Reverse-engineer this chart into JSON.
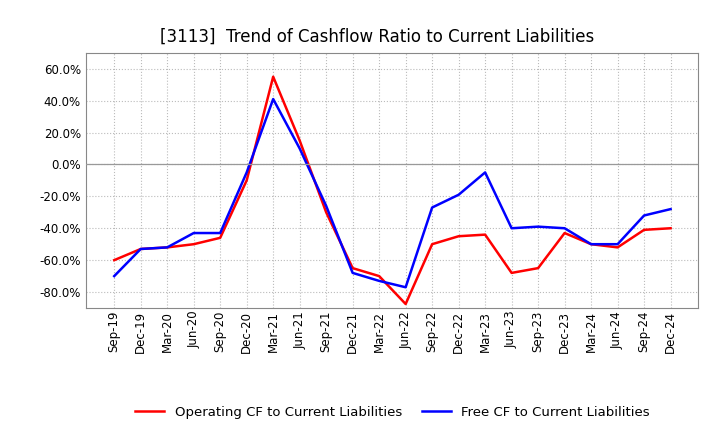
{
  "title": "[3113]  Trend of Cashflow Ratio to Current Liabilities",
  "x_labels": [
    "Sep-19",
    "Dec-19",
    "Mar-20",
    "Jun-20",
    "Sep-20",
    "Dec-20",
    "Mar-21",
    "Jun-21",
    "Sep-21",
    "Dec-21",
    "Mar-22",
    "Jun-22",
    "Sep-22",
    "Dec-22",
    "Mar-23",
    "Jun-23",
    "Sep-23",
    "Dec-23",
    "Mar-24",
    "Jun-24",
    "Sep-24",
    "Dec-24"
  ],
  "operating_cf": [
    -0.6,
    -0.53,
    -0.52,
    -0.5,
    -0.46,
    -0.1,
    0.55,
    0.15,
    -0.3,
    -0.65,
    -0.7,
    -0.875,
    -0.5,
    -0.45,
    -0.44,
    -0.68,
    -0.65,
    -0.43,
    -0.5,
    -0.52,
    -0.41,
    -0.4
  ],
  "free_cf": [
    -0.7,
    -0.53,
    -0.52,
    -0.43,
    -0.43,
    -0.05,
    0.41,
    0.1,
    -0.26,
    -0.68,
    -0.73,
    -0.77,
    -0.27,
    -0.19,
    -0.05,
    -0.4,
    -0.39,
    -0.4,
    -0.5,
    -0.5,
    -0.32,
    -0.28
  ],
  "operating_color": "#FF0000",
  "free_color": "#0000FF",
  "ylim": [
    -0.9,
    0.7
  ],
  "yticks": [
    -0.8,
    -0.6,
    -0.4,
    -0.2,
    0.0,
    0.2,
    0.4,
    0.6
  ],
  "background_color": "#FFFFFF",
  "plot_bg_color": "#FFFFFF",
  "grid_color": "#AAAAAA",
  "title_fontsize": 12,
  "legend_fontsize": 9.5,
  "tick_fontsize": 8.5
}
